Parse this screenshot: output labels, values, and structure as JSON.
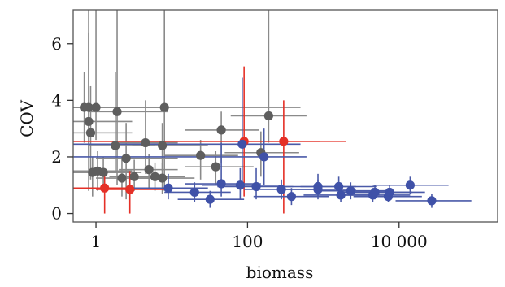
{
  "chart_data": {
    "type": "scatter",
    "xlabel": "biomass",
    "ylabel": "COV",
    "x_scale": "log10",
    "xlim": [
      0.5,
      200000
    ],
    "ylim": [
      -0.3,
      7.2
    ],
    "x_ticks": [
      {
        "value": 1,
        "label": "1"
      },
      {
        "value": 100,
        "label": "100"
      },
      {
        "value": 10000,
        "label": "10 000"
      }
    ],
    "y_ticks": [
      {
        "value": 0,
        "label": "0"
      },
      {
        "value": 2,
        "label": "2"
      },
      {
        "value": 4,
        "label": "4"
      },
      {
        "value": 6,
        "label": "6"
      }
    ],
    "grid": false,
    "legend": "none",
    "series": [
      {
        "color": "#5e5e5e",
        "error_color": "#8a8a8a",
        "points": [
          {
            "x": 0.7,
            "y": 3.75,
            "xlo": 0.4,
            "xhi": 3,
            "ylo": 2.5,
            "yhi": 5
          },
          {
            "x": 0.8,
            "y": 3.75,
            "xlo": 0.4,
            "xhi": 8,
            "ylo": 2,
            "yhi": 7.2
          },
          {
            "x": 1.0,
            "y": 3.75,
            "xlo": 0.5,
            "xhi": 2,
            "ylo": 2.6,
            "yhi": 7.2
          },
          {
            "x": 0.8,
            "y": 3.25,
            "xlo": 0.4,
            "xhi": 3,
            "ylo": 0.8,
            "yhi": 6.4
          },
          {
            "x": 0.85,
            "y": 2.85,
            "xlo": 0.4,
            "xhi": 3,
            "ylo": 1.2,
            "yhi": 4.5
          },
          {
            "x": 1.9,
            "y": 3.6,
            "xlo": 0.8,
            "xhi": 9,
            "ylo": 1.0,
            "yhi": 7.2
          },
          {
            "x": 8.0,
            "y": 3.75,
            "xlo": 3,
            "xhi": 500,
            "ylo": 0.8,
            "yhi": 7.2
          },
          {
            "x": 2.5,
            "y": 1.95,
            "xlo": 1,
            "xhi": 12,
            "ylo": 0.5,
            "yhi": 3.2
          },
          {
            "x": 1.8,
            "y": 2.4,
            "xlo": 0.8,
            "xhi": 6,
            "ylo": 1.5,
            "yhi": 5.0
          },
          {
            "x": 4.5,
            "y": 2.5,
            "xlo": 2,
            "xhi": 12,
            "ylo": 1.4,
            "yhi": 4.0
          },
          {
            "x": 7.5,
            "y": 2.4,
            "xlo": 3,
            "xhi": 30,
            "ylo": 1.5,
            "yhi": 3.2
          },
          {
            "x": 45,
            "y": 2.95,
            "xlo": 15,
            "xhi": 140,
            "ylo": 1.8,
            "yhi": 3.6
          },
          {
            "x": 24,
            "y": 2.05,
            "xlo": 8,
            "xhi": 75,
            "ylo": 1.2,
            "yhi": 2.6
          },
          {
            "x": 38,
            "y": 1.65,
            "xlo": 15,
            "xhi": 120,
            "ylo": 1.0,
            "yhi": 2.2
          },
          {
            "x": 190,
            "y": 3.45,
            "xlo": 60,
            "xhi": 600,
            "ylo": 2.5,
            "yhi": 7.2
          },
          {
            "x": 150,
            "y": 2.15,
            "xlo": 50,
            "xhi": 480,
            "ylo": 1.3,
            "yhi": 2.9
          },
          {
            "x": 0.9,
            "y": 1.45,
            "xlo": 0.4,
            "xhi": 3,
            "ylo": 0.6,
            "yhi": 2.0
          },
          {
            "x": 1.05,
            "y": 1.5,
            "xlo": 0.5,
            "xhi": 3,
            "ylo": 0.8,
            "yhi": 2.2
          },
          {
            "x": 1.25,
            "y": 1.45,
            "xlo": 0.5,
            "xhi": 4,
            "ylo": 0.9,
            "yhi": 2.0
          },
          {
            "x": 2.2,
            "y": 1.25,
            "xlo": 1,
            "xhi": 6,
            "ylo": 0.6,
            "yhi": 2.0
          },
          {
            "x": 3.2,
            "y": 1.3,
            "xlo": 1.5,
            "xhi": 8,
            "ylo": 0.8,
            "yhi": 1.9
          },
          {
            "x": 5.0,
            "y": 1.55,
            "xlo": 2,
            "xhi": 12,
            "ylo": 0.9,
            "yhi": 2.1
          },
          {
            "x": 6.0,
            "y": 1.3,
            "xlo": 2.5,
            "xhi": 15,
            "ylo": 0.8,
            "yhi": 1.8
          },
          {
            "x": 7.5,
            "y": 1.25,
            "xlo": 3,
            "xhi": 20,
            "ylo": 0.7,
            "yhi": 1.8
          }
        ]
      },
      {
        "color": "#e53027",
        "error_color": "#e53027",
        "points": [
          {
            "x": 90,
            "y": 2.55,
            "xlo": 0.3,
            "xhi": 900,
            "ylo": 0.6,
            "yhi": 5.2
          },
          {
            "x": 300,
            "y": 2.55,
            "xlo": 0.3,
            "xhi": 2000,
            "ylo": 0.0,
            "yhi": 4.0
          },
          {
            "x": 1.3,
            "y": 0.9,
            "xlo": 0.4,
            "xhi": 5,
            "ylo": 0.0,
            "yhi": 1.4
          },
          {
            "x": 2.8,
            "y": 0.85,
            "xlo": 1,
            "xhi": 8,
            "ylo": 0.0,
            "yhi": 1.5
          }
        ]
      },
      {
        "color": "#3f51a8",
        "error_color": "#4a5aa8",
        "points": [
          {
            "x": 85,
            "y": 2.45,
            "xlo": 0.3,
            "xhi": 500,
            "ylo": 1.0,
            "yhi": 4.8
          },
          {
            "x": 165,
            "y": 2.0,
            "xlo": 0.3,
            "xhi": 600,
            "ylo": 1.0,
            "yhi": 3.0
          },
          {
            "x": 9,
            "y": 0.9,
            "xlo": 3,
            "xhi": 30,
            "ylo": 0.5,
            "yhi": 1.4
          },
          {
            "x": 20,
            "y": 0.75,
            "xlo": 8,
            "xhi": 60,
            "ylo": 0.4,
            "yhi": 1.1
          },
          {
            "x": 32,
            "y": 0.5,
            "xlo": 12,
            "xhi": 90,
            "ylo": 0.2,
            "yhi": 0.8
          },
          {
            "x": 45,
            "y": 1.05,
            "xlo": 15,
            "xhi": 150,
            "ylo": 0.6,
            "yhi": 2.5
          },
          {
            "x": 80,
            "y": 1.0,
            "xlo": 25,
            "xhi": 300,
            "ylo": 0.5,
            "yhi": 1.6
          },
          {
            "x": 130,
            "y": 0.95,
            "xlo": 40,
            "xhi": 400,
            "ylo": 0.5,
            "yhi": 1.6
          },
          {
            "x": 280,
            "y": 0.85,
            "xlo": 90,
            "xhi": 900,
            "ylo": 0.5,
            "yhi": 1.2
          },
          {
            "x": 380,
            "y": 0.6,
            "xlo": 120,
            "xhi": 1200,
            "ylo": 0.3,
            "yhi": 0.9
          },
          {
            "x": 850,
            "y": 0.85,
            "xlo": 280,
            "xhi": 2700,
            "ylo": 0.5,
            "yhi": 1.2
          },
          {
            "x": 850,
            "y": 0.95,
            "xlo": 280,
            "xhi": 2700,
            "ylo": 0.6,
            "yhi": 1.4
          },
          {
            "x": 1600,
            "y": 0.95,
            "xlo": 500,
            "xhi": 5000,
            "ylo": 0.6,
            "yhi": 1.3
          },
          {
            "x": 1700,
            "y": 0.65,
            "xlo": 550,
            "xhi": 5500,
            "ylo": 0.4,
            "yhi": 0.9
          },
          {
            "x": 2300,
            "y": 0.8,
            "xlo": 800,
            "xhi": 7000,
            "ylo": 0.5,
            "yhi": 1.1
          },
          {
            "x": 4500,
            "y": 0.65,
            "xlo": 1500,
            "xhi": 14000,
            "ylo": 0.4,
            "yhi": 0.9
          },
          {
            "x": 4800,
            "y": 0.75,
            "xlo": 1600,
            "xhi": 15000,
            "ylo": 0.5,
            "yhi": 1.0
          },
          {
            "x": 7200,
            "y": 0.6,
            "xlo": 2500,
            "xhi": 20000,
            "ylo": 0.4,
            "yhi": 0.9
          },
          {
            "x": 7500,
            "y": 0.75,
            "xlo": 2500,
            "xhi": 22000,
            "ylo": 0.5,
            "yhi": 1.0
          },
          {
            "x": 14000,
            "y": 1.0,
            "xlo": 4500,
            "xhi": 45000,
            "ylo": 0.7,
            "yhi": 1.3
          },
          {
            "x": 27000,
            "y": 0.45,
            "xlo": 9000,
            "xhi": 90000,
            "ylo": 0.2,
            "yhi": 0.7
          }
        ]
      }
    ]
  }
}
